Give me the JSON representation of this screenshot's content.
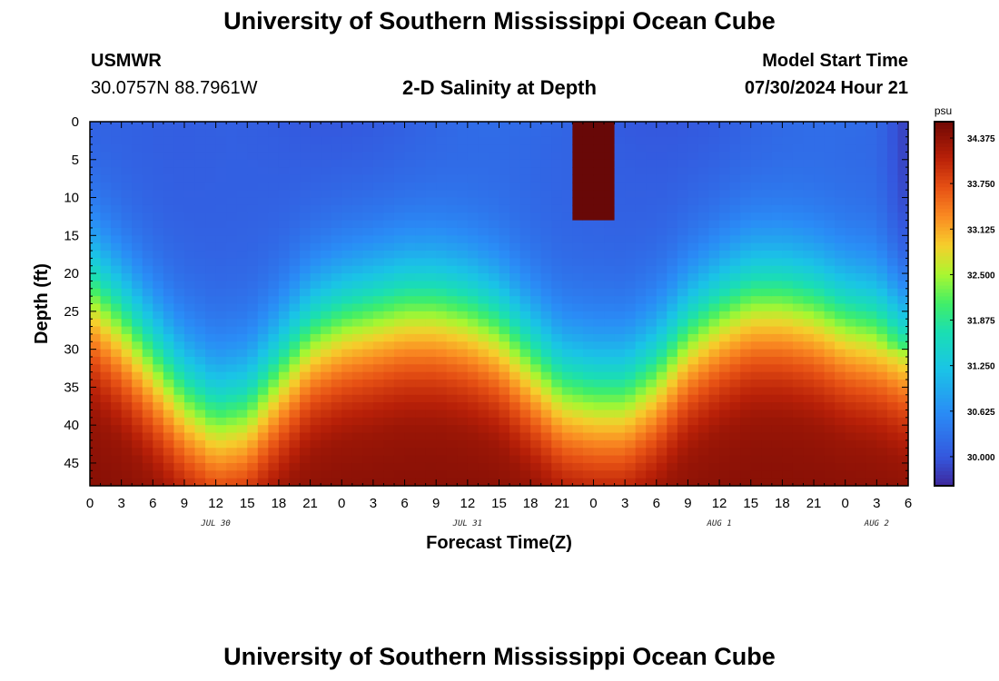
{
  "header": {
    "title": "University of Southern Mississippi Ocean Cube",
    "station_name": "USMWR",
    "station_coords": "30.0757N  88.7961W",
    "subtitle": "2-D Salinity at Depth",
    "start_label": "Model Start Time",
    "start_value": "07/30/2024 Hour 21"
  },
  "footer": {
    "title": "University of Southern Mississippi Ocean Cube"
  },
  "chart_data": {
    "type": "heatmap",
    "title": "2-D Salinity at Depth",
    "xlabel": "Forecast Time(Z)",
    "ylabel": "Depth (ft)",
    "x_range_hours": [
      0,
      78
    ],
    "x_ticks": [
      "0",
      "3",
      "6",
      "9",
      "12",
      "15",
      "18",
      "21",
      "0",
      "3",
      "6",
      "9",
      "12",
      "15",
      "18",
      "21",
      "0",
      "3",
      "6",
      "9",
      "12",
      "15",
      "18",
      "21",
      "0",
      "3",
      "6"
    ],
    "date_labels": [
      {
        "label": "JUL 30",
        "hour": 12
      },
      {
        "label": "JUL 31",
        "hour": 36
      },
      {
        "label": "AUG 1",
        "hour": 60
      },
      {
        "label": "AUG 2",
        "hour": 75
      }
    ],
    "y_range_ft": [
      0,
      48
    ],
    "y_ticks": [
      "0",
      "5",
      "10",
      "15",
      "20",
      "25",
      "30",
      "35",
      "40",
      "45"
    ],
    "colorbar": {
      "unit": "psu",
      "range": [
        29.6,
        34.6
      ],
      "ticks": [
        "34.375",
        "33.750",
        "33.125",
        "32.500",
        "31.875",
        "31.250",
        "30.625",
        "30.000"
      ]
    },
    "halocline_depth_ft": [
      {
        "hour": 0,
        "depth": 22
      },
      {
        "hour": 3,
        "depth": 26
      },
      {
        "hour": 6,
        "depth": 31
      },
      {
        "hour": 9,
        "depth": 36
      },
      {
        "hour": 12,
        "depth": 39
      },
      {
        "hour": 15,
        "depth": 38
      },
      {
        "hour": 18,
        "depth": 33
      },
      {
        "hour": 21,
        "depth": 28
      },
      {
        "hour": 24,
        "depth": 26
      },
      {
        "hour": 27,
        "depth": 25
      },
      {
        "hour": 30,
        "depth": 24
      },
      {
        "hour": 33,
        "depth": 24
      },
      {
        "hour": 36,
        "depth": 25
      },
      {
        "hour": 39,
        "depth": 27
      },
      {
        "hour": 42,
        "depth": 31
      },
      {
        "hour": 45,
        "depth": 35
      },
      {
        "hour": 48,
        "depth": 36
      },
      {
        "hour": 51,
        "depth": 36
      },
      {
        "hour": 54,
        "depth": 33
      },
      {
        "hour": 57,
        "depth": 28
      },
      {
        "hour": 60,
        "depth": 25
      },
      {
        "hour": 63,
        "depth": 23
      },
      {
        "hour": 66,
        "depth": 23
      },
      {
        "hour": 69,
        "depth": 24
      },
      {
        "hour": 72,
        "depth": 26
      },
      {
        "hour": 75,
        "depth": 27
      },
      {
        "hour": 78,
        "depth": 29
      }
    ],
    "surface_salinity_psu": 30.1,
    "deep_salinity_psu": 34.2,
    "high_salinity_plume": {
      "hour_start": 46,
      "hour_end": 50,
      "depth_start": 0,
      "depth_end": 13,
      "value_psu": 34.8
    }
  }
}
